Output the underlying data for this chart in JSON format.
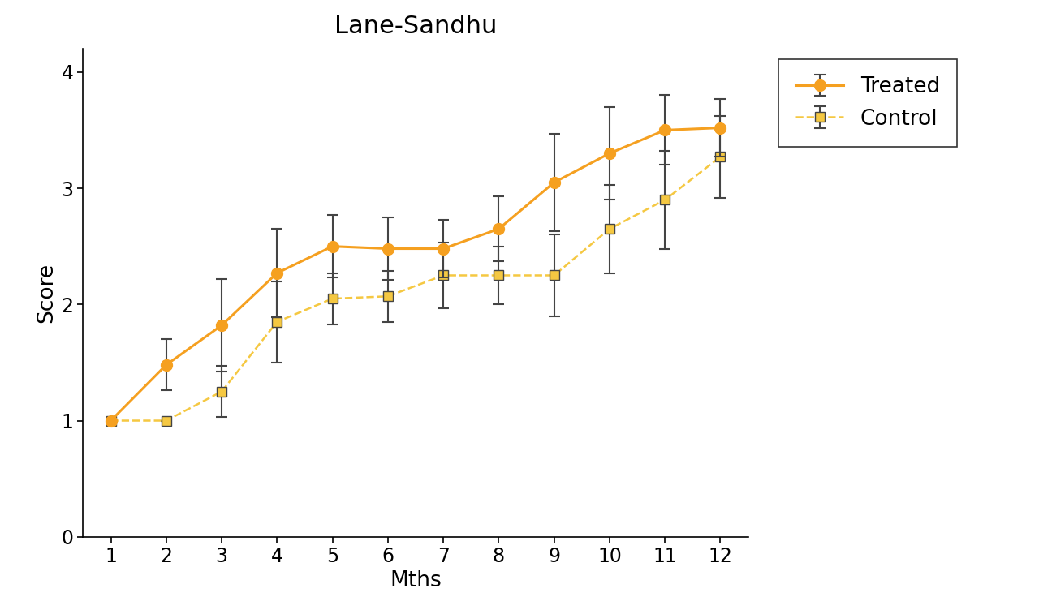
{
  "months": [
    1,
    2,
    3,
    4,
    5,
    6,
    7,
    8,
    9,
    10,
    11,
    12
  ],
  "treated_mean": [
    1.0,
    1.48,
    1.82,
    2.27,
    2.5,
    2.48,
    2.48,
    2.65,
    3.05,
    3.3,
    3.5,
    3.52
  ],
  "treated_sd": [
    0.0,
    0.22,
    0.4,
    0.38,
    0.27,
    0.27,
    0.25,
    0.28,
    0.42,
    0.4,
    0.3,
    0.25
  ],
  "control_mean": [
    1.0,
    1.0,
    1.25,
    1.85,
    2.05,
    2.07,
    2.25,
    2.25,
    2.25,
    2.65,
    2.9,
    3.27
  ],
  "control_sd": [
    0.0,
    0.0,
    0.22,
    0.35,
    0.22,
    0.22,
    0.28,
    0.25,
    0.35,
    0.38,
    0.42,
    0.35
  ],
  "title": "Lane-Sandhu",
  "xlabel": "Mths",
  "ylabel": "Score",
  "ylim": [
    0,
    4.2
  ],
  "yticks": [
    0,
    1,
    2,
    3,
    4
  ],
  "treated_line_color": "#F5A020",
  "treated_marker_color": "#F5A020",
  "control_line_color": "#F5C842",
  "control_marker_face": "#F5C842",
  "control_marker_edge": "#444444",
  "errorbar_color": "#444444",
  "treated_label": "Treated",
  "control_label": "Control",
  "title_fontsize": 22,
  "label_fontsize": 19,
  "tick_fontsize": 17,
  "legend_fontsize": 19
}
